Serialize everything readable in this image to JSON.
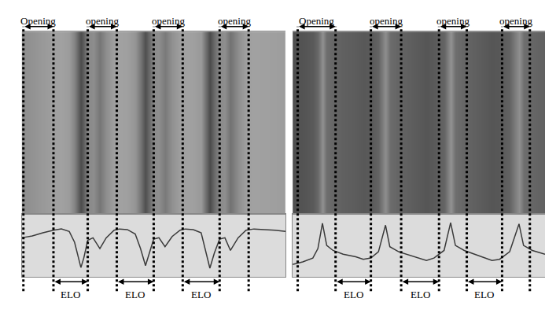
{
  "chart_data": [
    {
      "type": "line",
      "top_labels": [
        "Opening",
        "opening",
        "opening",
        "opening"
      ],
      "openings": [
        [
          0.6,
          12
        ],
        [
          25,
          36
        ],
        [
          50,
          61
        ],
        [
          75,
          86
        ]
      ],
      "bottom_labels": [
        "ELO",
        "ELO",
        "ELO"
      ],
      "elo": [
        [
          12,
          25
        ],
        [
          36,
          50
        ],
        [
          61,
          75
        ]
      ],
      "x": [
        0,
        4,
        8,
        12,
        15,
        18,
        20,
        21.5,
        22.4,
        23.5,
        25,
        27,
        29.6,
        32,
        35,
        37,
        40,
        43,
        45,
        46.9,
        48.5,
        50,
        52,
        54.3,
        57,
        60,
        62,
        65,
        68,
        69.5,
        71.3,
        73,
        75,
        77,
        79.1,
        82,
        85,
        88,
        92,
        96,
        100
      ],
      "values": [
        62,
        65,
        70,
        74,
        76,
        72,
        55,
        30,
        15,
        30,
        58,
        62,
        45,
        62,
        74,
        76,
        75,
        68,
        45,
        18,
        40,
        60,
        62,
        48,
        64,
        74,
        76,
        75,
        70,
        45,
        14,
        38,
        60,
        62,
        42,
        62,
        74,
        76,
        75,
        74,
        72
      ],
      "xlim": [
        0,
        100
      ],
      "ylim": [
        0,
        100
      ],
      "tick_labels": false,
      "color": "#3a3a3a",
      "line_style": "solid",
      "image": {
        "x": [
          0,
          4,
          8,
          12,
          15,
          18,
          20,
          21.5,
          22.4,
          23.5,
          25,
          27,
          29.6,
          32,
          35,
          37,
          40,
          43,
          45,
          46.9,
          48.5,
          50,
          52,
          54.3,
          57,
          60,
          62,
          65,
          68,
          69.5,
          71.3,
          73,
          75,
          77,
          79.1,
          82,
          85,
          88,
          92,
          96,
          100
        ],
        "gray": [
          142,
          146,
          153,
          159,
          161,
          156,
          132,
          97,
          76,
          97,
          136,
          142,
          118,
          142,
          159,
          161,
          160,
          150,
          118,
          80,
          111,
          139,
          142,
          122,
          145,
          159,
          161,
          160,
          153,
          118,
          75,
          108,
          139,
          142,
          114,
          142,
          159,
          161,
          160,
          159,
          156
        ],
        "gray_range": [
          0,
          255
        ]
      }
    },
    {
      "type": "line",
      "top_labels": [
        "Opening",
        "opening",
        "opening",
        "opening"
      ],
      "openings": [
        [
          2,
          17
        ],
        [
          31,
          43
        ],
        [
          58,
          69
        ],
        [
          83,
          94
        ]
      ],
      "bottom_labels": [
        "ELO",
        "ELO",
        "ELO"
      ],
      "elo": [
        [
          17,
          31
        ],
        [
          43,
          58
        ],
        [
          69,
          83
        ]
      ],
      "x": [
        0,
        4,
        8,
        10,
        11.8,
        13.5,
        16,
        20,
        25,
        28,
        31,
        34,
        36.8,
        38.5,
        42,
        46,
        50,
        53,
        56,
        60,
        62.6,
        64.5,
        68,
        72,
        76,
        79,
        82,
        86,
        89.7,
        91.5,
        95,
        100
      ],
      "values": [
        20,
        24,
        30,
        45,
        85,
        50,
        42,
        36,
        32,
        28,
        30,
        40,
        82,
        48,
        40,
        35,
        30,
        26,
        30,
        42,
        86,
        50,
        42,
        36,
        30,
        26,
        28,
        40,
        84,
        50,
        42,
        36
      ],
      "xlim": [
        0,
        100
      ],
      "ylim": [
        0,
        100
      ],
      "tick_labels": false,
      "color": "#3a3a3a",
      "line_style": "solid",
      "image": {
        "x": [
          0,
          4,
          8,
          10,
          11.8,
          13.5,
          16,
          20,
          25,
          28,
          31,
          34,
          36.8,
          38.5,
          42,
          46,
          50,
          53,
          56,
          60,
          62.6,
          64.5,
          68,
          72,
          76,
          79,
          82,
          86,
          89.7,
          91.5,
          95,
          100
        ],
        "gray": [
          80,
          84,
          90,
          105,
          145,
          110,
          102,
          96,
          92,
          88,
          90,
          100,
          142,
          108,
          100,
          95,
          90,
          86,
          90,
          102,
          146,
          110,
          102,
          96,
          90,
          86,
          88,
          100,
          144,
          110,
          102,
          96
        ],
        "gray_range": [
          0,
          255
        ]
      }
    }
  ]
}
